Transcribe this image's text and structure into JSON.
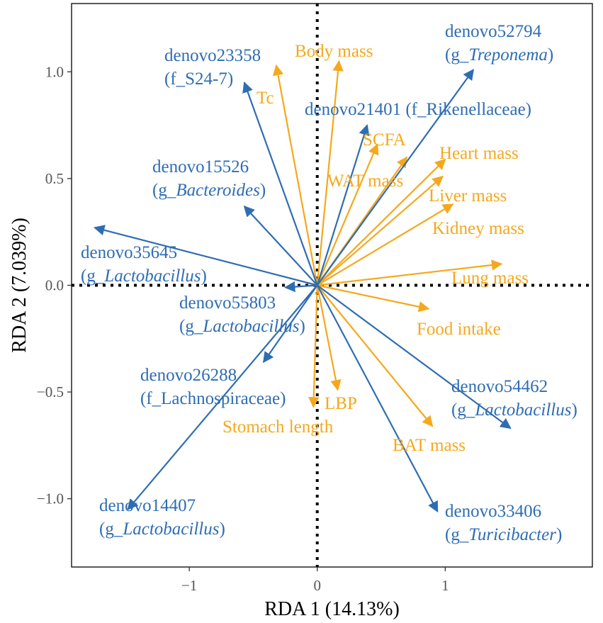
{
  "chart_data": {
    "type": "scatter",
    "subtype": "rda-biplot",
    "xlabel": "RDA 1 (14.13%)",
    "ylabel": "RDA 2 (7.039%)",
    "xlim": [
      -1.92,
      2.15
    ],
    "ylim": [
      -1.32,
      1.32
    ],
    "xticks": [
      {
        "v": -1,
        "label": "−1"
      },
      {
        "v": 0,
        "label": "0"
      },
      {
        "v": 1,
        "label": "1"
      }
    ],
    "yticks": [
      {
        "v": -1,
        "label": "−1.0"
      },
      {
        "v": -0.5,
        "label": "−0.5"
      },
      {
        "v": 0,
        "label": "0.0"
      },
      {
        "v": 0.5,
        "label": "0.5"
      },
      {
        "v": 1,
        "label": "1.0"
      }
    ],
    "colors": {
      "environmental": "#f5a81c",
      "otu": "#2e6db2",
      "frame": "#000000"
    },
    "series": [
      {
        "name": "environmental",
        "color": "#f5a81c",
        "vectors": [
          {
            "name": "Body mass",
            "x": 0.17,
            "y": 1.05
          },
          {
            "name": "Tc",
            "x": -0.32,
            "y": 1.03
          },
          {
            "name": "SCFA",
            "x": 0.47,
            "y": 0.66
          },
          {
            "name": "WAT mass",
            "x": 0.7,
            "y": 0.6
          },
          {
            "name": "Heart mass",
            "x": 1.0,
            "y": 0.59
          },
          {
            "name": "Liver mass",
            "x": 0.98,
            "y": 0.51
          },
          {
            "name": "Kidney mass",
            "x": 1.06,
            "y": 0.38
          },
          {
            "name": "Lung mass",
            "x": 1.44,
            "y": 0.1
          },
          {
            "name": "Food intake",
            "x": 0.87,
            "y": -0.11
          },
          {
            "name": "BAT mass",
            "x": 0.9,
            "y": -0.66
          },
          {
            "name": "LBP",
            "x": 0.16,
            "y": -0.49
          },
          {
            "name": "Stomach length",
            "x": -0.03,
            "y": -0.57
          }
        ]
      },
      {
        "name": "otu",
        "color": "#2e6db2",
        "vectors": [
          {
            "name": "denovo52794",
            "taxon": {
              "prefix": "(g_",
              "name": "Treponema",
              "italic": true,
              "suffix": ")"
            },
            "x": 1.22,
            "y": 1.01
          },
          {
            "name": "denovo23358",
            "taxon": {
              "prefix": "(f_S24-7)",
              "name": "",
              "italic": false,
              "suffix": ""
            },
            "x": -0.57,
            "y": 0.95
          },
          {
            "name": "denovo21401",
            "taxon": {
              "prefix": "(f_Rikenellaceae)",
              "name": "",
              "italic": false,
              "suffix": ""
            },
            "x": 0.39,
            "y": 0.75
          },
          {
            "name": "denovo15526",
            "taxon": {
              "prefix": "(g_",
              "name": "Bacteroides",
              "italic": true,
              "suffix": ")"
            },
            "x": -0.57,
            "y": 0.37
          },
          {
            "name": "denovo35645",
            "taxon": {
              "prefix": "(g_",
              "name": "Lactobacillus",
              "italic": true,
              "suffix": ")"
            },
            "x": -1.74,
            "y": 0.27
          },
          {
            "name": "denovo55803",
            "taxon": {
              "prefix": "(g_",
              "name": "Lactobacillus",
              "italic": true,
              "suffix": ")"
            },
            "x": -0.25,
            "y": -0.01
          },
          {
            "name": "denovo26288",
            "taxon": {
              "prefix": "(f_Lachnospiraceae)",
              "name": "",
              "italic": false,
              "suffix": ""
            },
            "x": -0.42,
            "y": -0.36
          },
          {
            "name": "denovo14407",
            "taxon": {
              "prefix": "(g_",
              "name": "Lactobacillus",
              "italic": true,
              "suffix": ")"
            },
            "x": -1.48,
            "y": -1.05
          },
          {
            "name": "denovo54462",
            "taxon": {
              "prefix": "(g_",
              "name": "Lactobacillus",
              "italic": true,
              "suffix": ")"
            },
            "x": 1.51,
            "y": -0.67
          },
          {
            "name": "denovo33406",
            "taxon": {
              "prefix": "(g_",
              "name": "Turicibacter",
              "italic": true,
              "suffix": ")"
            },
            "x": 0.94,
            "y": -1.06
          }
        ]
      }
    ]
  }
}
